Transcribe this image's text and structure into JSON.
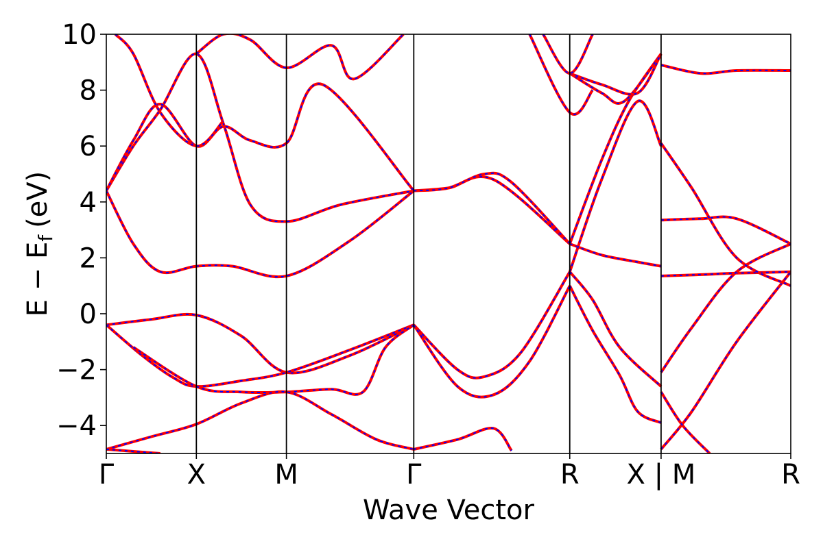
{
  "chart_data": {
    "type": "line",
    "title": "",
    "xlabel": "Wave Vector",
    "ylabel": "E − E",
    "ylabel_subscript": "f",
    "ylabel_unit": "(eV)",
    "ylim": [
      -5,
      10
    ],
    "yticks": [
      -4,
      -2,
      0,
      2,
      4,
      6,
      8,
      10
    ],
    "ytick_labels": [
      "−4",
      "−2",
      "0",
      "2",
      "4",
      "6",
      "8",
      "10"
    ],
    "xlim": [
      0,
      7.6
    ],
    "high_symmetry_points": [
      {
        "label": "Γ",
        "x": 0
      },
      {
        "label": "X",
        "x": 1
      },
      {
        "label": "M",
        "x": 2
      },
      {
        "label": "Γ",
        "x": 3.414
      },
      {
        "label": "R",
        "x": 5.146
      },
      {
        "label": "X | M",
        "x": 6.16
      },
      {
        "label": "R",
        "x": 7.6
      }
    ],
    "grid": false,
    "legend": "none",
    "colors": {
      "red": "#ff0000",
      "blue": "#0000ff",
      "axis": "#000000"
    },
    "series": [
      {
        "x": [
          0,
          0.5,
          1,
          1.5,
          2,
          2.7,
          3.414
        ],
        "values": [
          -0.4,
          -0.2,
          -0.05,
          -0.8,
          -2.1,
          -1.5,
          -0.4
        ]
      },
      {
        "x": [
          0,
          0.4,
          0.75,
          1,
          1.5,
          2,
          2.7,
          3.414
        ],
        "values": [
          -0.4,
          -1.5,
          -2.3,
          -2.6,
          -2.4,
          -2.1,
          -1.3,
          -0.4
        ]
      },
      {
        "x": [
          0.3,
          1,
          1.5,
          2,
          2.5,
          2.85,
          3.1,
          3.414
        ],
        "values": [
          -1.2,
          -2.6,
          -2.8,
          -2.8,
          -2.7,
          -2.8,
          -1.2,
          -0.4
        ]
      },
      {
        "x": [
          0,
          0.5,
          1,
          1.5,
          2,
          2.5,
          3,
          3.414
        ],
        "values": [
          -4.85,
          -4.4,
          -3.95,
          -3.2,
          -2.8,
          -3.6,
          -4.5,
          -4.85
        ]
      },
      {
        "x": [
          0,
          0.6
        ],
        "values": [
          -4.85,
          -5.0
        ]
      },
      {
        "x": [
          0,
          0.3,
          0.6,
          1,
          1.4,
          2,
          2.7,
          3.414
        ],
        "values": [
          4.4,
          2.5,
          1.5,
          1.7,
          1.7,
          1.35,
          2.6,
          4.4
        ]
      },
      {
        "x": [
          0,
          0.3,
          0.6,
          1,
          1.3,
          1.6,
          2,
          2.6,
          3.414
        ],
        "values": [
          4.4,
          6.0,
          7.3,
          9.3,
          6.8,
          3.9,
          3.3,
          3.9,
          4.4
        ]
      },
      {
        "x": [
          0,
          0.3,
          0.6,
          1,
          1.3,
          1.6,
          2,
          2.4,
          3.414
        ],
        "values": [
          4.4,
          6.2,
          7.5,
          6.0,
          6.7,
          6.2,
          6.1,
          8.2,
          4.4
        ]
      },
      {
        "x": [
          0.1,
          0.3,
          0.6,
          1,
          1.3
        ],
        "values": [
          10.0,
          9.3,
          7.2,
          6.0,
          6.9
        ]
      },
      {
        "x": [
          1,
          1.3,
          1.6,
          2,
          2.5,
          2.75,
          3.3
        ],
        "values": [
          9.3,
          10.0,
          9.8,
          8.8,
          9.6,
          8.4,
          10.0
        ]
      },
      {
        "x": [
          3.414,
          3.8,
          4.3,
          5.146
        ],
        "values": [
          4.4,
          4.5,
          4.8,
          2.5
        ]
      },
      {
        "x": [
          3.414,
          3.8,
          4.2,
          4.5,
          5.146
        ],
        "values": [
          4.4,
          4.5,
          5.0,
          4.7,
          2.5
        ]
      },
      {
        "x": [
          3.414,
          3.9,
          4.2,
          4.6,
          5.146
        ],
        "values": [
          -0.4,
          -2.0,
          -2.25,
          -1.4,
          1.5
        ]
      },
      {
        "x": [
          3.414,
          3.9,
          4.3,
          4.7,
          5.146
        ],
        "values": [
          -0.4,
          -2.6,
          -2.9,
          -1.7,
          1.0
        ]
      },
      {
        "x": [
          3.414,
          3.9,
          4.3,
          4.5
        ],
        "values": [
          -4.85,
          -4.5,
          -4.1,
          -4.9
        ]
      },
      {
        "x": [
          5.146,
          5.5,
          5.9,
          6.16
        ],
        "values": [
          2.5,
          2.1,
          1.85,
          1.7
        ]
      },
      {
        "x": [
          5.146,
          5.5,
          5.8,
          6.16
        ],
        "values": [
          2.5,
          5.5,
          7.6,
          9.3
        ]
      },
      {
        "x": [
          5.146,
          5.5,
          5.9,
          6.16
        ],
        "values": [
          1.5,
          4.8,
          7.6,
          6.0
        ]
      },
      {
        "x": [
          5.146,
          5.4,
          5.7,
          5.9,
          6.16
        ],
        "values": [
          1.0,
          -0.6,
          -2.2,
          -3.5,
          -3.9
        ]
      },
      {
        "x": [
          5.146,
          5.4,
          5.7,
          6.16
        ],
        "values": [
          1.5,
          0.5,
          -1.2,
          -2.6
        ]
      },
      {
        "x": [
          5.146,
          5.5,
          5.75,
          6.16
        ],
        "values": [
          8.6,
          7.9,
          7.6,
          9.3
        ]
      },
      {
        "x": [
          5.146,
          5.5,
          5.9,
          6.16
        ],
        "values": [
          8.6,
          8.2,
          7.9,
          9.3
        ]
      },
      {
        "x": [
          4.85,
          5.146,
          5.4
        ],
        "values": [
          10.0,
          8.6,
          10.0
        ]
      },
      {
        "x": [
          4.7,
          5.146,
          5.4
        ],
        "values": [
          10.0,
          7.2,
          8.0
        ]
      },
      {
        "x": [
          6.16,
          6.6,
          7.0,
          7.6
        ],
        "values": [
          3.35,
          3.4,
          3.4,
          2.5
        ]
      },
      {
        "x": [
          6.16,
          6.6,
          7.0,
          7.6
        ],
        "values": [
          1.35,
          1.4,
          1.45,
          1.5
        ]
      },
      {
        "x": [
          6.16,
          6.5,
          7.0,
          7.6
        ],
        "values": [
          -2.1,
          -0.5,
          1.5,
          2.5
        ]
      },
      {
        "x": [
          6.16,
          6.5,
          7.0,
          7.6
        ],
        "values": [
          -4.85,
          -3.5,
          -1.0,
          1.5
        ]
      },
      {
        "x": [
          6.16,
          6.5,
          7.0,
          7.6
        ],
        "values": [
          6.1,
          4.5,
          2.0,
          1.0
        ]
      },
      {
        "x": [
          6.16,
          6.6,
          7.0,
          7.6
        ],
        "values": [
          8.9,
          8.6,
          8.7,
          8.7
        ]
      },
      {
        "x": [
          6.16,
          6.4,
          6.7
        ],
        "values": [
          -2.8,
          -4.0,
          -5.0
        ]
      }
    ]
  }
}
